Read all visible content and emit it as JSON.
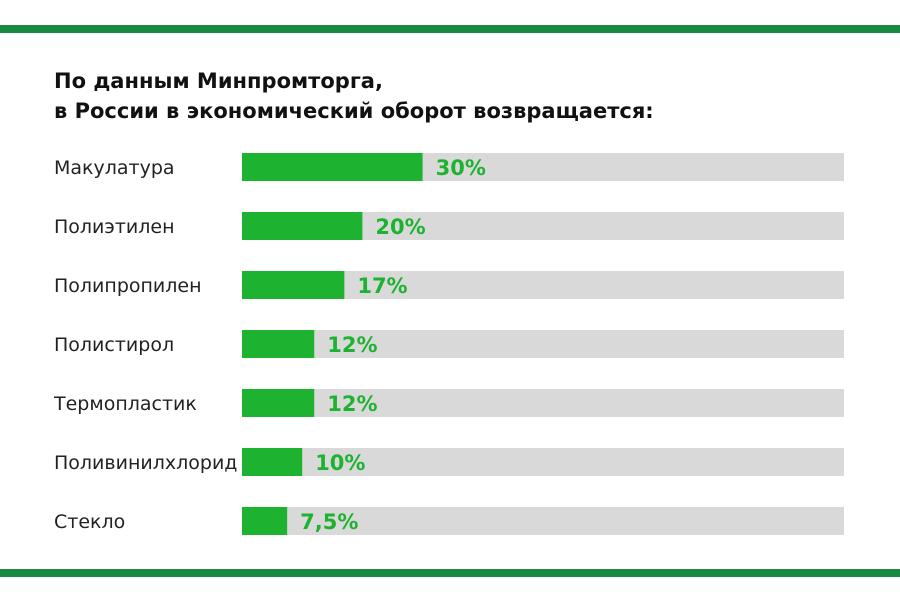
{
  "title": {
    "line1": "По данным Минпромторга,",
    "line2": "в России в экономический оборот возвращается:"
  },
  "colors": {
    "accent": "#1db330",
    "rule": "#178b3f",
    "track": "#d9d9d9",
    "text": "#222222"
  },
  "chart_data": {
    "type": "bar",
    "orientation": "horizontal",
    "categories": [
      "Макулатура",
      "Полиэтилен",
      "Полипропилен",
      "Полистирол",
      "Термопластик",
      "Поливинилхлорид",
      "Стекло"
    ],
    "values": [
      30,
      20,
      17,
      12,
      12,
      10,
      7.5
    ],
    "value_labels": [
      "30%",
      "20%",
      "17%",
      "12%",
      "12%",
      "10%",
      "7,5%"
    ],
    "xlim": [
      0,
      100
    ],
    "grid": false,
    "legend": "none"
  }
}
